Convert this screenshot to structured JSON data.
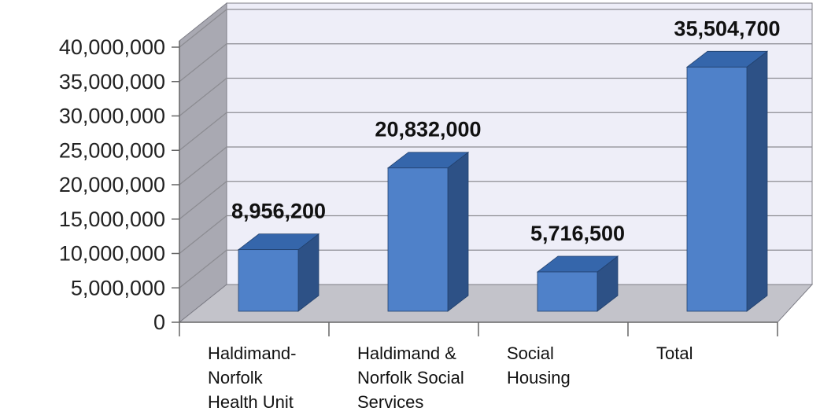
{
  "chart_data": {
    "type": "bar",
    "title": "",
    "xlabel": "",
    "ylabel": "",
    "categories": [
      [
        "Haldimand-",
        "Norfolk",
        "Health Unit"
      ],
      [
        "Haldimand &",
        "Norfolk Social",
        "Services"
      ],
      [
        "Social",
        "Housing"
      ],
      [
        "Total"
      ]
    ],
    "values": [
      8956200,
      20832000,
      5716500,
      35504700
    ],
    "value_labels": [
      "8,956,200",
      "20,832,000",
      "5,716,500",
      "35,504,700"
    ],
    "y_ticks": [
      "0",
      "5,000,000",
      "10,000,000",
      "15,000,000",
      "20,000,000",
      "25,000,000",
      "30,000,000",
      "35,000,000",
      "40,000,000"
    ],
    "ylim": [
      0,
      40000000
    ],
    "grid": true,
    "legend": "none",
    "style": "3d-column",
    "colors": {
      "bar_front": "#4f81c9",
      "bar_top": "#3566ab",
      "bar_side": "#2d5186",
      "back_wall": "#eeeef8",
      "side_wall": "#a9a9b2",
      "floor": "#c3c3ca",
      "grid": "#8c8c92"
    }
  }
}
